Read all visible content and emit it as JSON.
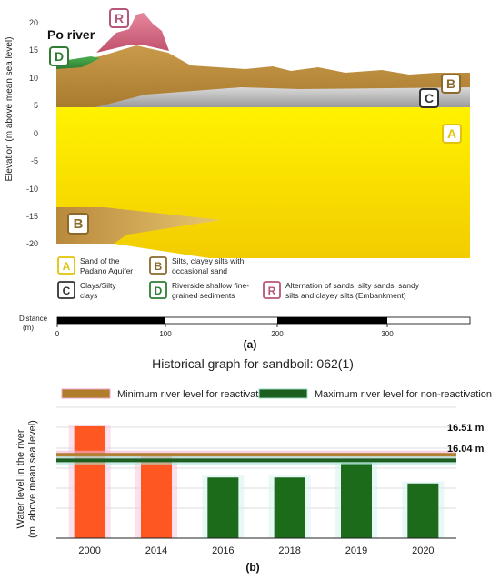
{
  "panel_a": {
    "river_label": "Po river",
    "ylabel": "Elevation (m above mean sea level)",
    "yticks": [
      "20",
      "15",
      "10",
      "5",
      "0",
      "-5",
      "-10",
      "-15",
      "-20"
    ],
    "ylim": [
      -20,
      21
    ],
    "layer_markers": [
      {
        "letter": "R",
        "color": "#b5567a"
      },
      {
        "letter": "D",
        "color": "#2e7d32"
      },
      {
        "letter": "B",
        "color": "#8b6a2b"
      },
      {
        "letter": "C",
        "color": "#333333"
      },
      {
        "letter": "A",
        "color": "#e2c20a"
      },
      {
        "letter": "B",
        "color": "#8b6a2b"
      }
    ],
    "legend": [
      {
        "letter": "A",
        "text_lines": [
          "Sand  of the",
          "Padano Aquifer"
        ],
        "color": "#e2c20a"
      },
      {
        "letter": "B",
        "text_lines": [
          "Silts, clayey silts with",
          "occasional sand"
        ],
        "color": "#8b6a2b"
      },
      {
        "letter": "C",
        "text_lines": [
          "Clays/Silty",
          "clays"
        ],
        "color": "#333333"
      },
      {
        "letter": "D",
        "text_lines": [
          "Riverside shallow fine-",
          "grained sediments"
        ],
        "color": "#2e7d32"
      },
      {
        "letter": "R",
        "text_lines": [
          "Alternation of sands, silty sands, sandy",
          "silts and clayey silts (Embankment)"
        ],
        "color": "#b5567a"
      }
    ],
    "scale_label": [
      "Distance",
      "(m)"
    ],
    "scale_ticks": [
      "0",
      "100",
      "200",
      "300"
    ],
    "caption": "(a)"
  },
  "panel_b": {
    "title": "Historical graph for sandboil: 062(1)",
    "legend": [
      {
        "label": "Minimum river level for reactivation",
        "color": "#b07d2c"
      },
      {
        "label": "Maximum river level for non-reactivation",
        "color": "#1b5e20"
      }
    ],
    "ylabel_lines": [
      "Water level in the river",
      "(m, above mean sea level)"
    ],
    "caption": "(b)",
    "line_labels": [
      "16.51 m",
      "16.04 m"
    ]
  },
  "chart_data": {
    "type": "bar",
    "title": "Historical graph for sandboil: 062(1)",
    "ylabel": "Water level in the river (m, above mean sea level)",
    "categories": [
      "2000",
      "2014",
      "2016",
      "2018",
      "2019",
      "2020"
    ],
    "values": [
      18.9,
      16.5,
      14.6,
      14.6,
      15.8,
      14.1
    ],
    "bar_colors": [
      "#ff5722",
      "#ff5722",
      "#1b6b1b",
      "#1b6b1b",
      "#1b6b1b",
      "#1b6b1b"
    ],
    "reference_lines": [
      {
        "name": "Minimum river level for reactivation",
        "value": 16.51
      },
      {
        "name": "Maximum river level for non-reactivation",
        "value": 16.04
      }
    ],
    "ylim": [
      9.5,
      20.5
    ]
  }
}
